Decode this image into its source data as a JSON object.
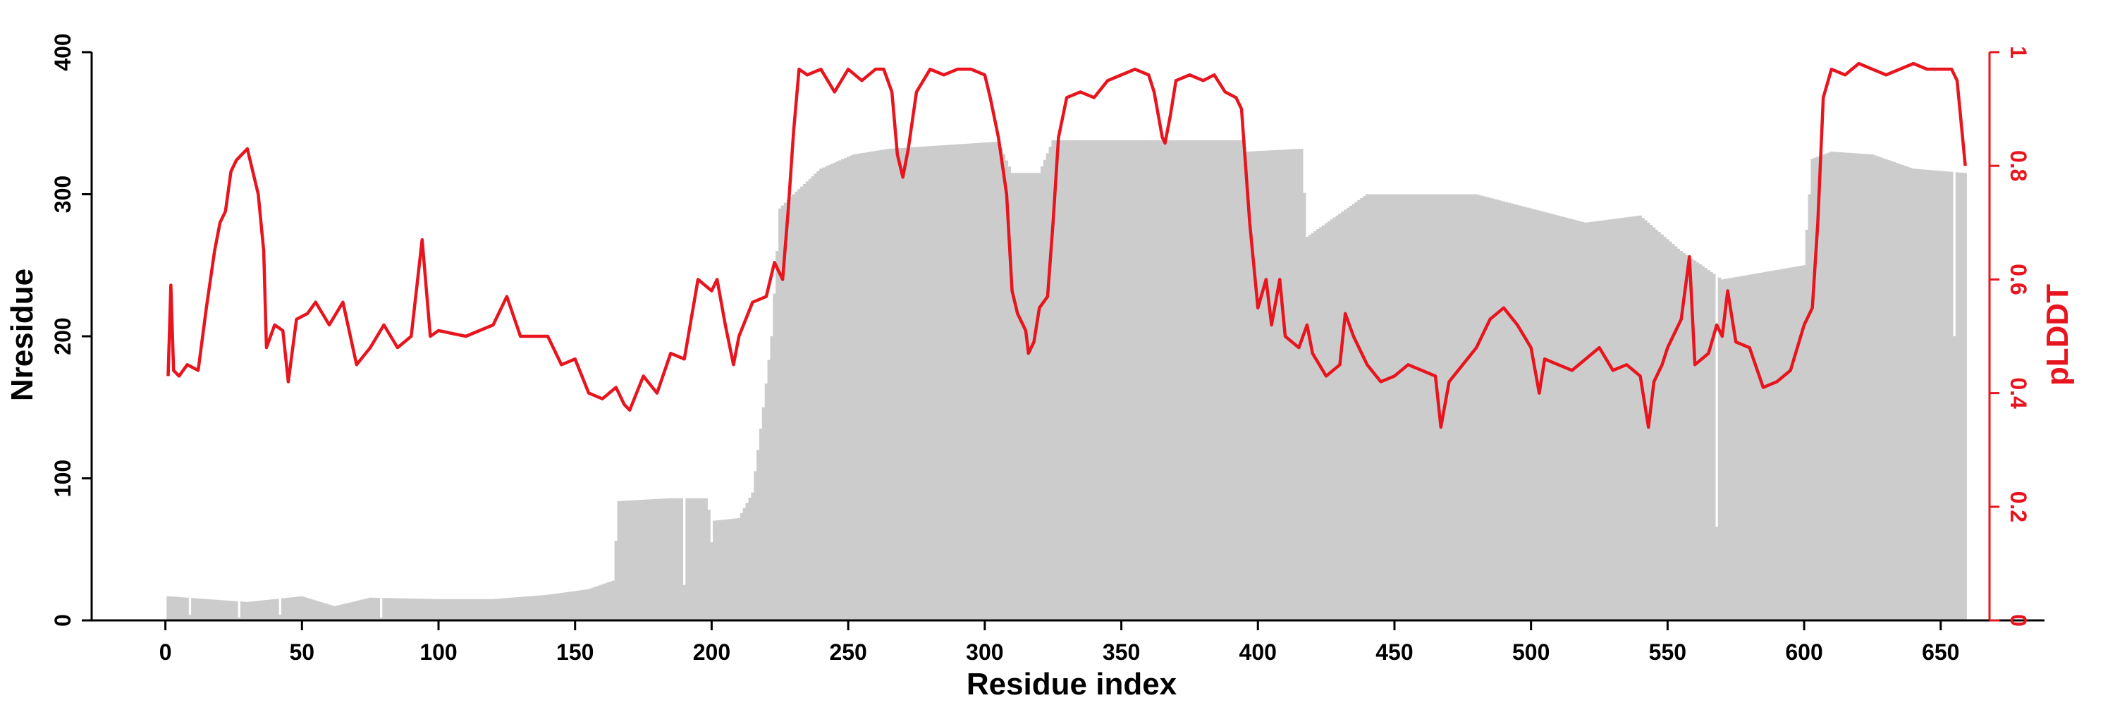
{
  "chart_data": {
    "type": "bar",
    "xlabel": "Residue index",
    "ylabel": "Nresidue",
    "y2label": "pLDDT",
    "xlim": [
      -27,
      688
    ],
    "ylim": [
      0,
      400
    ],
    "y2lim": [
      0,
      1
    ],
    "xticks": [
      0,
      50,
      100,
      150,
      200,
      250,
      300,
      350,
      400,
      450,
      500,
      550,
      600,
      650
    ],
    "yticks": [
      0,
      100,
      200,
      300,
      400
    ],
    "y2ticks": [
      "0",
      "0.2",
      "0.4",
      "0.6",
      "0.8",
      "1"
    ],
    "colors": {
      "bars": "#cccccc",
      "line": "#e8141e",
      "axis_left": "#000000",
      "axis_right": "#e8141e"
    },
    "bars": {
      "name": "Nresidue",
      "x_start": 1,
      "x_end": 659,
      "profile": [
        [
          1,
          17
        ],
        [
          15,
          15
        ],
        [
          30,
          13
        ],
        [
          50,
          17
        ],
        [
          62,
          10
        ],
        [
          75,
          16
        ],
        [
          100,
          15
        ],
        [
          120,
          15
        ],
        [
          140,
          18
        ],
        [
          155,
          22
        ],
        [
          164,
          28
        ],
        [
          166,
          84
        ],
        [
          185,
          86
        ],
        [
          198,
          86
        ],
        [
          200,
          70
        ],
        [
          210,
          72
        ],
        [
          215,
          90
        ],
        [
          219,
          150
        ],
        [
          222,
          200
        ],
        [
          225,
          290
        ],
        [
          230,
          300
        ],
        [
          240,
          318
        ],
        [
          252,
          328
        ],
        [
          265,
          332
        ],
        [
          305,
          337
        ],
        [
          310,
          315
        ],
        [
          320,
          315
        ],
        [
          325,
          338
        ],
        [
          395,
          338
        ],
        [
          396,
          330
        ],
        [
          416,
          332
        ],
        [
          418,
          270
        ],
        [
          440,
          300
        ],
        [
          460,
          300
        ],
        [
          480,
          300
        ],
        [
          500,
          290
        ],
        [
          520,
          280
        ],
        [
          540,
          285
        ],
        [
          555,
          260
        ],
        [
          570,
          240
        ],
        [
          585,
          245
        ],
        [
          600,
          250
        ],
        [
          603,
          325
        ],
        [
          610,
          330
        ],
        [
          625,
          328
        ],
        [
          640,
          318
        ],
        [
          659,
          315
        ]
      ],
      "dips": [
        [
          9,
          4
        ],
        [
          27,
          2
        ],
        [
          42,
          4
        ],
        [
          79,
          2
        ],
        [
          190,
          25
        ],
        [
          200,
          55
        ],
        [
          568,
          66
        ],
        [
          655,
          200
        ]
      ]
    },
    "series": [
      {
        "name": "pLDDT",
        "axis": "right",
        "anchors": [
          [
            1,
            0.43
          ],
          [
            2,
            0.59
          ],
          [
            3,
            0.44
          ],
          [
            5,
            0.43
          ],
          [
            8,
            0.45
          ],
          [
            12,
            0.44
          ],
          [
            15,
            0.55
          ],
          [
            18,
            0.65
          ],
          [
            20,
            0.7
          ],
          [
            22,
            0.72
          ],
          [
            24,
            0.79
          ],
          [
            26,
            0.81
          ],
          [
            28,
            0.82
          ],
          [
            30,
            0.83
          ],
          [
            32,
            0.79
          ],
          [
            34,
            0.75
          ],
          [
            36,
            0.65
          ],
          [
            37,
            0.48
          ],
          [
            40,
            0.52
          ],
          [
            43,
            0.51
          ],
          [
            45,
            0.42
          ],
          [
            48,
            0.53
          ],
          [
            52,
            0.54
          ],
          [
            55,
            0.56
          ],
          [
            60,
            0.52
          ],
          [
            65,
            0.56
          ],
          [
            70,
            0.45
          ],
          [
            75,
            0.48
          ],
          [
            80,
            0.52
          ],
          [
            85,
            0.48
          ],
          [
            90,
            0.5
          ],
          [
            94,
            0.67
          ],
          [
            97,
            0.5
          ],
          [
            100,
            0.51
          ],
          [
            110,
            0.5
          ],
          [
            120,
            0.52
          ],
          [
            125,
            0.57
          ],
          [
            130,
            0.5
          ],
          [
            140,
            0.5
          ],
          [
            145,
            0.45
          ],
          [
            150,
            0.46
          ],
          [
            155,
            0.4
          ],
          [
            160,
            0.39
          ],
          [
            165,
            0.41
          ],
          [
            168,
            0.38
          ],
          [
            170,
            0.37
          ],
          [
            175,
            0.43
          ],
          [
            180,
            0.4
          ],
          [
            185,
            0.47
          ],
          [
            190,
            0.46
          ],
          [
            195,
            0.6
          ],
          [
            200,
            0.58
          ],
          [
            202,
            0.6
          ],
          [
            205,
            0.52
          ],
          [
            208,
            0.45
          ],
          [
            210,
            0.5
          ],
          [
            215,
            0.56
          ],
          [
            220,
            0.57
          ],
          [
            223,
            0.63
          ],
          [
            226,
            0.6
          ],
          [
            228,
            0.72
          ],
          [
            230,
            0.86
          ],
          [
            232,
            0.97
          ],
          [
            235,
            0.96
          ],
          [
            240,
            0.97
          ],
          [
            245,
            0.93
          ],
          [
            250,
            0.97
          ],
          [
            255,
            0.95
          ],
          [
            260,
            0.97
          ],
          [
            263,
            0.97
          ],
          [
            266,
            0.93
          ],
          [
            268,
            0.82
          ],
          [
            270,
            0.78
          ],
          [
            272,
            0.83
          ],
          [
            275,
            0.93
          ],
          [
            280,
            0.97
          ],
          [
            285,
            0.96
          ],
          [
            290,
            0.97
          ],
          [
            295,
            0.97
          ],
          [
            300,
            0.96
          ],
          [
            302,
            0.92
          ],
          [
            305,
            0.85
          ],
          [
            308,
            0.75
          ],
          [
            310,
            0.58
          ],
          [
            312,
            0.54
          ],
          [
            315,
            0.51
          ],
          [
            316,
            0.47
          ],
          [
            318,
            0.49
          ],
          [
            320,
            0.55
          ],
          [
            323,
            0.57
          ],
          [
            325,
            0.7
          ],
          [
            327,
            0.85
          ],
          [
            330,
            0.92
          ],
          [
            335,
            0.93
          ],
          [
            340,
            0.92
          ],
          [
            345,
            0.95
          ],
          [
            350,
            0.96
          ],
          [
            355,
            0.97
          ],
          [
            360,
            0.96
          ],
          [
            362,
            0.93
          ],
          [
            365,
            0.85
          ],
          [
            366,
            0.84
          ],
          [
            368,
            0.89
          ],
          [
            370,
            0.95
          ],
          [
            375,
            0.96
          ],
          [
            380,
            0.95
          ],
          [
            384,
            0.96
          ],
          [
            388,
            0.93
          ],
          [
            392,
            0.92
          ],
          [
            394,
            0.9
          ],
          [
            397,
            0.7
          ],
          [
            400,
            0.55
          ],
          [
            403,
            0.6
          ],
          [
            405,
            0.52
          ],
          [
            408,
            0.6
          ],
          [
            410,
            0.5
          ],
          [
            415,
            0.48
          ],
          [
            418,
            0.52
          ],
          [
            420,
            0.47
          ],
          [
            425,
            0.43
          ],
          [
            430,
            0.45
          ],
          [
            432,
            0.54
          ],
          [
            435,
            0.5
          ],
          [
            440,
            0.45
          ],
          [
            445,
            0.42
          ],
          [
            450,
            0.43
          ],
          [
            455,
            0.45
          ],
          [
            460,
            0.44
          ],
          [
            465,
            0.43
          ],
          [
            467,
            0.34
          ],
          [
            470,
            0.42
          ],
          [
            475,
            0.45
          ],
          [
            480,
            0.48
          ],
          [
            485,
            0.53
          ],
          [
            490,
            0.55
          ],
          [
            495,
            0.52
          ],
          [
            500,
            0.48
          ],
          [
            503,
            0.4
          ],
          [
            505,
            0.46
          ],
          [
            510,
            0.45
          ],
          [
            515,
            0.44
          ],
          [
            520,
            0.46
          ],
          [
            525,
            0.48
          ],
          [
            530,
            0.44
          ],
          [
            535,
            0.45
          ],
          [
            540,
            0.43
          ],
          [
            543,
            0.34
          ],
          [
            545,
            0.42
          ],
          [
            548,
            0.45
          ],
          [
            550,
            0.48
          ],
          [
            555,
            0.53
          ],
          [
            558,
            0.64
          ],
          [
            560,
            0.45
          ],
          [
            565,
            0.47
          ],
          [
            568,
            0.52
          ],
          [
            570,
            0.5
          ],
          [
            572,
            0.58
          ],
          [
            575,
            0.49
          ],
          [
            580,
            0.48
          ],
          [
            585,
            0.41
          ],
          [
            590,
            0.42
          ],
          [
            595,
            0.44
          ],
          [
            600,
            0.52
          ],
          [
            603,
            0.55
          ],
          [
            605,
            0.7
          ],
          [
            607,
            0.92
          ],
          [
            610,
            0.97
          ],
          [
            615,
            0.96
          ],
          [
            620,
            0.98
          ],
          [
            625,
            0.97
          ],
          [
            630,
            0.96
          ],
          [
            635,
            0.97
          ],
          [
            640,
            0.98
          ],
          [
            645,
            0.97
          ],
          [
            650,
            0.97
          ],
          [
            654,
            0.97
          ],
          [
            656,
            0.95
          ],
          [
            658,
            0.85
          ],
          [
            659,
            0.8
          ]
        ]
      }
    ]
  }
}
